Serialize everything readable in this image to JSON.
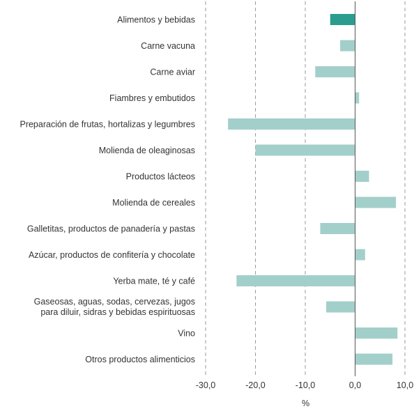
{
  "chart_data": {
    "type": "bar",
    "orientation": "horizontal",
    "categories": [
      [
        "Alimentos y bebidas"
      ],
      [
        "Carne vacuna"
      ],
      [
        "Carne aviar"
      ],
      [
        "Fiambres y embutidos"
      ],
      [
        "Preparación de frutas, hortalizas y legumbres"
      ],
      [
        "Molienda de oleaginosas"
      ],
      [
        "Productos lácteos"
      ],
      [
        "Molienda de cereales"
      ],
      [
        "Galletitas, productos de panadería y pastas"
      ],
      [
        "Azúcar, productos de confitería y chocolate"
      ],
      [
        "Yerba mate, té y café"
      ],
      [
        "Gaseosas, aguas, sodas, cervezas, jugos",
        "para diluir, sidras y bebidas espirituosas"
      ],
      [
        "Vino"
      ],
      [
        "Otros productos alimenticios"
      ]
    ],
    "values": [
      -5.0,
      -3.0,
      -8.0,
      0.8,
      -25.5,
      -20.0,
      2.8,
      8.2,
      -7.0,
      2.0,
      -23.8,
      -5.8,
      8.5,
      7.5
    ],
    "highlight_index": 0,
    "colors": {
      "highlight": "#2a9d8f",
      "default": "#a3cfca"
    },
    "xlabel": "%",
    "xlim": [
      -30,
      10
    ],
    "xticks": [
      -30,
      -20,
      -10,
      0,
      10
    ],
    "xtick_labels": [
      "-30,0",
      "-20,0",
      "-10,0",
      "0,0",
      "10,0"
    ],
    "grid": "vertical-dashed",
    "legend": "none"
  }
}
